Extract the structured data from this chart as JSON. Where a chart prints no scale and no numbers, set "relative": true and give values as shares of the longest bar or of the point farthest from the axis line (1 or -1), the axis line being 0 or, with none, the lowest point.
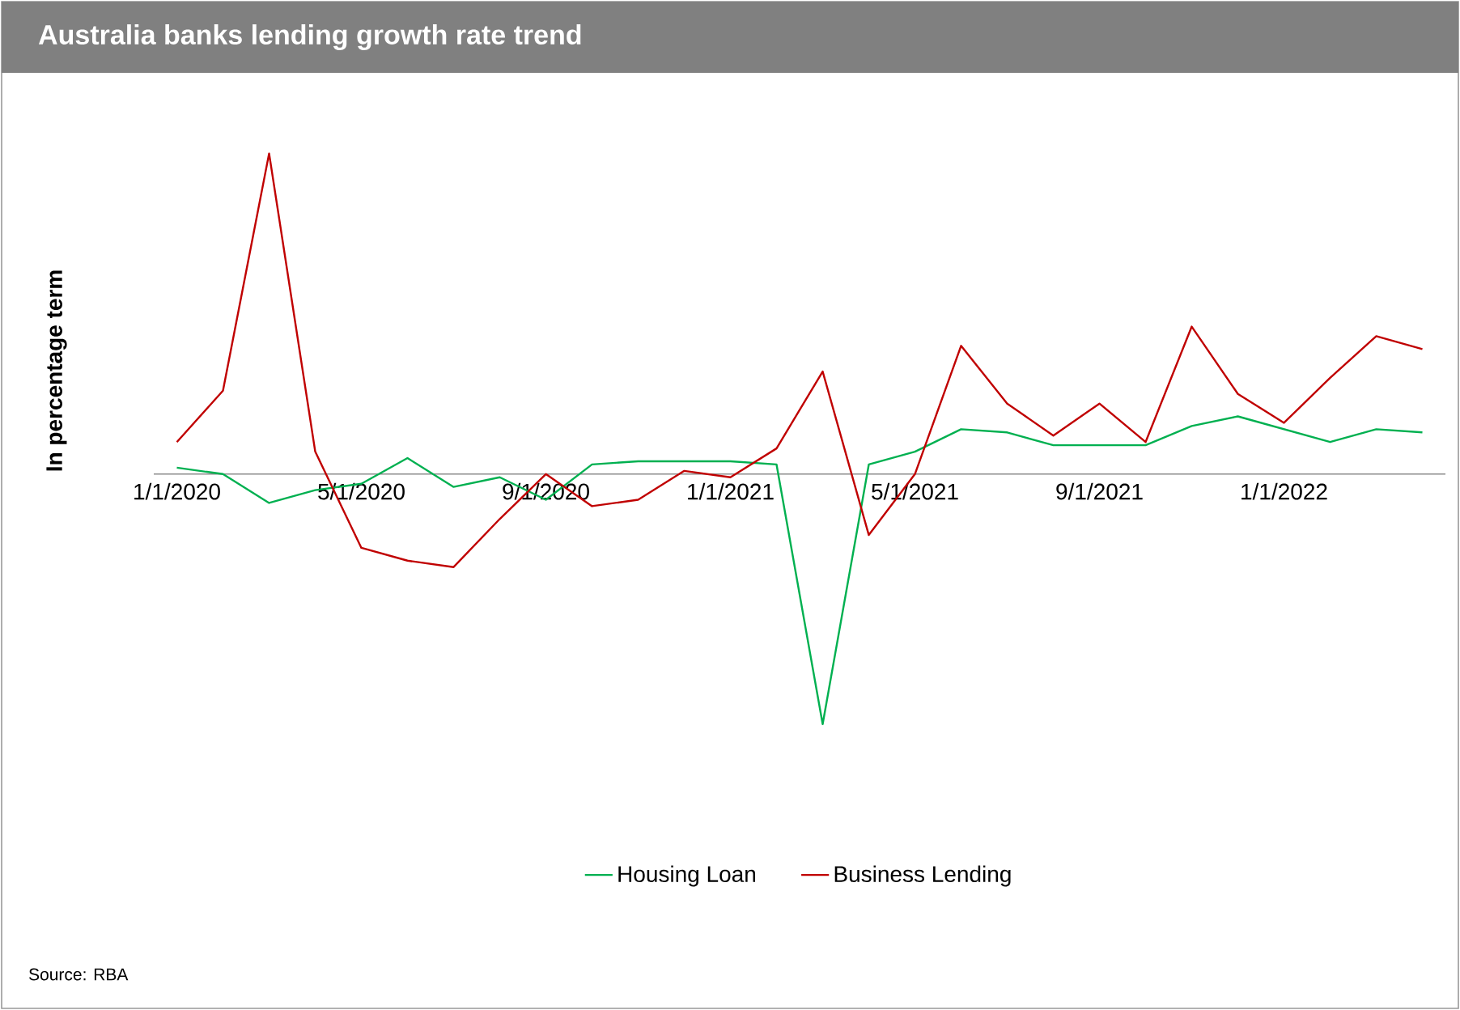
{
  "chart_data": {
    "type": "line",
    "title": "Australia banks lending growth rate trend",
    "ylabel": "In percentage term",
    "relative": true,
    "legend": "bottom",
    "marker": "none",
    "line_style": "solid",
    "grid": false,
    "categories": [
      "1/1/2020",
      null,
      null,
      null,
      "5/1/2020",
      null,
      null,
      null,
      "9/1/2020",
      null,
      null,
      null,
      "1/1/2021",
      null,
      null,
      null,
      "5/1/2021",
      null,
      null,
      null,
      "9/1/2021",
      null,
      null,
      null,
      "1/1/2022",
      null,
      null,
      null
    ],
    "series": [
      {
        "name": "Housing Loan",
        "color": "#00b050",
        "values": [
          0.02,
          0,
          -0.09,
          -0.05,
          -0.03,
          0.05,
          -0.04,
          -0.01,
          -0.08,
          0.03,
          0.04,
          0.04,
          0.04,
          0.03,
          -0.78,
          0.03,
          0.07,
          0.14,
          0.13,
          0.09,
          0.09,
          0.09,
          0.15,
          0.18,
          0.14,
          0.1,
          0.14,
          0.13
        ]
      },
      {
        "name": "Business Lending",
        "color": "#c00000",
        "values": [
          0.1,
          0.26,
          1.0,
          0.07,
          -0.23,
          -0.27,
          -0.29,
          -0.14,
          0,
          -0.1,
          -0.08,
          0.01,
          -0.01,
          0.08,
          0.32,
          -0.19,
          0,
          0.4,
          0.22,
          0.12,
          0.22,
          0.1,
          0.46,
          0.25,
          0.16,
          0.3,
          0.43,
          0.39
        ]
      }
    ],
    "annotations": [
      "Source: RBA"
    ]
  }
}
